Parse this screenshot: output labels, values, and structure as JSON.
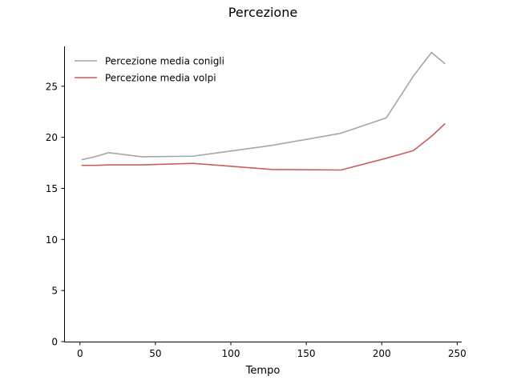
{
  "chart_data": {
    "type": "line",
    "title": "Percezione",
    "xlabel": "Tempo",
    "ylabel": "",
    "xlim": [
      -10.5,
      253
    ],
    "ylim": [
      0,
      28.9
    ],
    "xticks": [
      0,
      50,
      100,
      150,
      200,
      250
    ],
    "yticks": [
      0,
      5,
      10,
      15,
      20,
      25
    ],
    "grid": false,
    "legend_position": "top-left",
    "series": [
      {
        "name": "Percezione media conigli",
        "color": "#a6a6a6",
        "x": [
          1,
          10,
          19,
          41,
          75,
          127,
          173,
          203,
          221,
          233,
          242
        ],
        "y": [
          17.8,
          18.1,
          18.5,
          18.1,
          18.15,
          19.2,
          20.4,
          21.9,
          26.0,
          28.3,
          27.2
        ]
      },
      {
        "name": "Percezione media volpi",
        "color": "#cd5c5c",
        "x": [
          1,
          10,
          19,
          41,
          75,
          127,
          173,
          203,
          221,
          233,
          242
        ],
        "y": [
          17.25,
          17.25,
          17.3,
          17.3,
          17.45,
          16.85,
          16.8,
          17.95,
          18.7,
          20.1,
          21.35
        ]
      }
    ]
  }
}
